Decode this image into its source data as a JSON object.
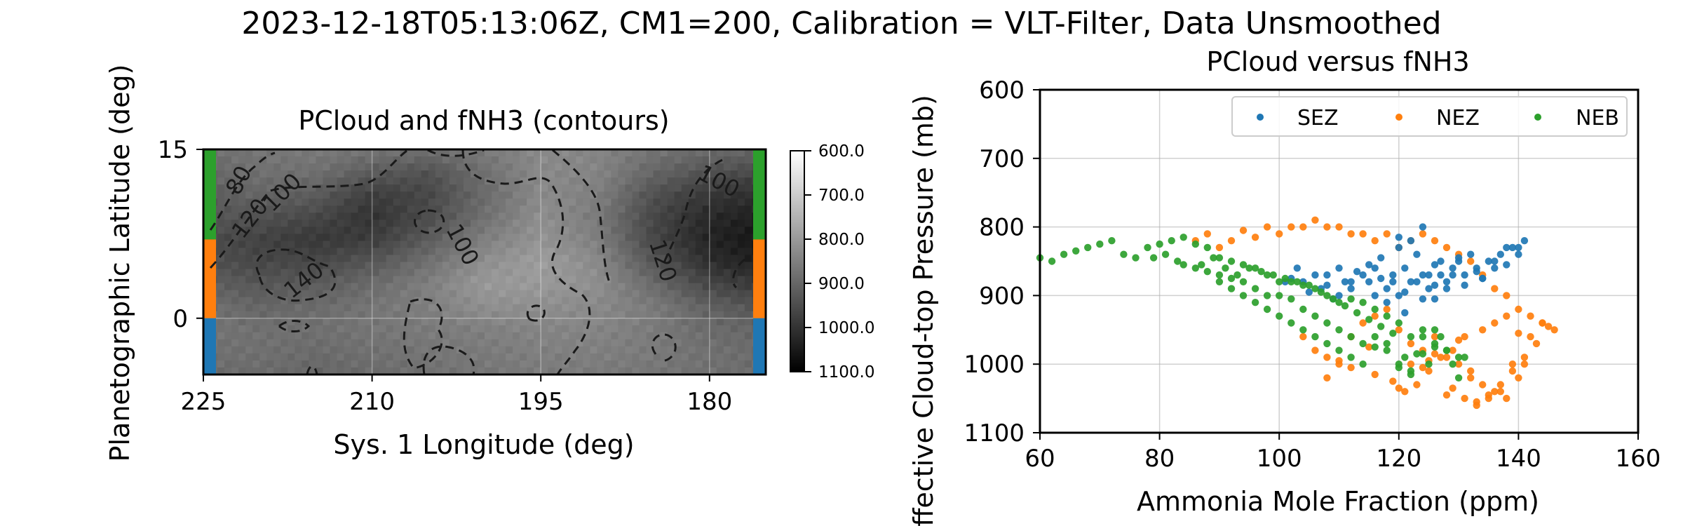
{
  "figure": {
    "suptitle": "2023-12-18T05:13:06Z, CM1=200, Calibration = VLT-Filter, Data Unsmoothed"
  },
  "chart_data": [
    {
      "type": "heatmap",
      "title": "PCloud and fNH3 (contours)",
      "xlabel": "Sys. 1 Longitude (deg)",
      "ylabel": "Planetographic Latitude (deg)",
      "xlim": [
        225,
        175
      ],
      "ylim": [
        -5,
        15
      ],
      "xticks": [
        "225",
        "210",
        "195",
        "180"
      ],
      "xtick_values": [
        225,
        210,
        195,
        180
      ],
      "yticks": [
        "15",
        "0"
      ],
      "ytick_values": [
        15,
        0
      ],
      "grid": true,
      "colormap": "gray_r",
      "colorbar": {
        "ticks": [
          "600.0",
          "700.0",
          "800.0",
          "900.0",
          "1000.0",
          "1100.0"
        ],
        "tick_values": [
          600,
          700,
          800,
          900,
          1000,
          1100
        ]
      },
      "contour_labels": [
        "80",
        "100",
        "120",
        "140",
        "100",
        "100",
        "120"
      ],
      "band_colors": [
        {
          "band": "NEB",
          "lat_range": [
            7,
            15
          ],
          "color": "#2ca02c"
        },
        {
          "band": "NEZ",
          "lat_range": [
            0,
            7
          ],
          "color": "#ff7f0e"
        },
        {
          "band": "SEZ",
          "lat_range": [
            -5,
            0
          ],
          "color": "#1f77b4"
        }
      ],
      "pressure_grid_lat_rows_top_to_bottom": [
        15,
        13,
        11,
        9,
        7,
        5,
        3,
        1,
        -1,
        -3,
        -5
      ],
      "pressure_grid_lon_cols_left_to_right": [
        225,
        220,
        215,
        210,
        205,
        200,
        195,
        190,
        185,
        180,
        175
      ],
      "pressure_grid": [
        [
          880,
          870,
          860,
          870,
          880,
          860,
          830,
          840,
          870,
          890,
          900
        ],
        [
          900,
          880,
          880,
          920,
          940,
          880,
          830,
          840,
          900,
          940,
          960
        ],
        [
          920,
          900,
          920,
          980,
          960,
          890,
          830,
          850,
          940,
          990,
          1010
        ],
        [
          930,
          940,
          960,
          1000,
          950,
          880,
          820,
          860,
          960,
          1020,
          1040
        ],
        [
          950,
          970,
          990,
          980,
          920,
          850,
          810,
          850,
          960,
          1030,
          1060
        ],
        [
          940,
          960,
          960,
          930,
          880,
          820,
          790,
          830,
          930,
          1010,
          1040
        ],
        [
          910,
          930,
          920,
          890,
          850,
          800,
          800,
          820,
          890,
          960,
          990
        ],
        [
          880,
          900,
          890,
          870,
          850,
          820,
          820,
          830,
          860,
          910,
          940
        ],
        [
          870,
          880,
          880,
          870,
          860,
          850,
          840,
          840,
          860,
          890,
          900
        ],
        [
          880,
          880,
          890,
          880,
          870,
          860,
          850,
          850,
          860,
          880,
          890
        ],
        [
          890,
          890,
          900,
          890,
          880,
          870,
          860,
          860,
          870,
          880,
          890
        ]
      ]
    },
    {
      "type": "scatter",
      "title": "PCloud versus fNH3",
      "xlabel": "Ammonia Mole Fraction (ppm)",
      "ylabel": "Effective Cloud-top Pressure (mb)",
      "xlim": [
        60,
        160
      ],
      "ylim": [
        1100,
        600
      ],
      "xticks": [
        "60",
        "80",
        "100",
        "120",
        "140",
        "160"
      ],
      "xtick_values": [
        60,
        80,
        100,
        120,
        140,
        160
      ],
      "yticks": [
        "600",
        "700",
        "800",
        "900",
        "1000",
        "1100"
      ],
      "ytick_values": [
        600,
        700,
        800,
        900,
        1000,
        1100
      ],
      "grid": true,
      "legend_position": "top-right",
      "series": [
        {
          "name": "SEZ",
          "color": "#1f77b4",
          "x": [
            102,
            104,
            106,
            108,
            110,
            112,
            114,
            115,
            116,
            117,
            118,
            119,
            120,
            120,
            121,
            122,
            123,
            124,
            125,
            126,
            127,
            128,
            129,
            130,
            131,
            132,
            133,
            134,
            135,
            136,
            137,
            138,
            139,
            140,
            141,
            120,
            122,
            124,
            118,
            116,
            126,
            128,
            121,
            119,
            123,
            125,
            110,
            112,
            105,
            108,
            127,
            130,
            133,
            136,
            138,
            140,
            113,
            117,
            129,
            131,
            134,
            115,
            111,
            109,
            107,
            103,
            101,
            121,
            124,
            126
          ],
          "y": [
            875,
            880,
            870,
            885,
            860,
            890,
            870,
            880,
            860,
            875,
            890,
            870,
            830,
            900,
            860,
            880,
            840,
            870,
            890,
            855,
            870,
            880,
            860,
            850,
            870,
            840,
            860,
            875,
            850,
            860,
            840,
            855,
            830,
            840,
            820,
            815,
            820,
            800,
            910,
            900,
            905,
            890,
            925,
            880,
            880,
            870,
            900,
            880,
            895,
            870,
            850,
            845,
            865,
            850,
            830,
            830,
            865,
            845,
            870,
            885,
            875,
            855,
            880,
            905,
            890,
            860,
            880,
            895,
            905,
            885
          ]
        },
        {
          "name": "NEZ",
          "color": "#ff7f0e",
          "x": [
            86,
            88,
            90,
            92,
            94,
            96,
            98,
            100,
            102,
            104,
            106,
            108,
            110,
            112,
            114,
            116,
            118,
            120,
            122,
            124,
            126,
            128,
            130,
            132,
            134,
            136,
            138,
            140,
            142,
            144,
            146,
            104,
            106,
            108,
            110,
            112,
            114,
            116,
            118,
            120,
            122,
            124,
            126,
            128,
            130,
            132,
            134,
            136,
            138,
            140,
            142,
            144,
            121,
            123,
            125,
            127,
            129,
            131,
            133,
            135,
            137,
            139,
            141,
            143,
            110,
            115,
            119,
            122,
            126,
            130,
            134,
            136,
            138,
            140,
            132,
            128,
            124,
            120,
            116,
            112,
            108,
            133,
            137,
            135,
            139,
            131,
            125,
            129,
            141,
            145
          ],
          "y": [
            820,
            810,
            830,
            820,
            805,
            815,
            800,
            810,
            800,
            800,
            790,
            800,
            800,
            810,
            810,
            820,
            810,
            830,
            820,
            810,
            820,
            830,
            840,
            850,
            870,
            890,
            900,
            920,
            930,
            940,
            950,
            960,
            980,
            990,
            1000,
            960,
            940,
            930,
            920,
            950,
            970,
            980,
            960,
            990,
            1000,
            1020,
            1030,
            1040,
            1050,
            1020,
            960,
            940,
            1040,
            1030,
            1010,
            990,
            980,
            960,
            1060,
            1050,
            1040,
            1000,
            990,
            970,
            995,
            975,
            1025,
            1000,
            985,
            965,
            950,
            940,
            930,
            955,
            1010,
            1045,
            1005,
            1035,
            1015,
            1005,
            1020,
            1055,
            1030,
            1045,
            1010,
            1050,
            995,
            1035,
            1000,
            945
          ]
        },
        {
          "name": "NEB",
          "color": "#2ca02c",
          "x": [
            60,
            62,
            64,
            66,
            68,
            70,
            72,
            74,
            76,
            78,
            80,
            82,
            84,
            86,
            88,
            90,
            92,
            94,
            96,
            98,
            100,
            102,
            104,
            106,
            108,
            110,
            112,
            114,
            116,
            118,
            120,
            122,
            124,
            126,
            128,
            130,
            84,
            86,
            88,
            90,
            92,
            94,
            96,
            98,
            100,
            102,
            104,
            106,
            108,
            110,
            112,
            114,
            116,
            118,
            120,
            122,
            124,
            126,
            128,
            130,
            90,
            92,
            94,
            96,
            98,
            100,
            102,
            104,
            106,
            108,
            110,
            112,
            114,
            116,
            118,
            120,
            122,
            124,
            126,
            95,
            97,
            99,
            101,
            103,
            105,
            107,
            109,
            111,
            113,
            115,
            117,
            119,
            121,
            123,
            125,
            127,
            129,
            131,
            79,
            81,
            83,
            87,
            89,
            91,
            93
          ],
          "y": [
            845,
            850,
            840,
            835,
            830,
            825,
            820,
            840,
            845,
            830,
            825,
            820,
            815,
            825,
            830,
            845,
            850,
            855,
            860,
            870,
            880,
            880,
            885,
            890,
            900,
            910,
            905,
            910,
            920,
            930,
            940,
            960,
            950,
            970,
            980,
            990,
            855,
            860,
            865,
            870,
            875,
            880,
            890,
            900,
            900,
            905,
            920,
            930,
            940,
            950,
            960,
            970,
            975,
            980,
            1000,
            1010,
            960,
            950,
            980,
            1020,
            880,
            890,
            900,
            910,
            920,
            930,
            940,
            950,
            960,
            970,
            980,
            990,
            1000,
            960,
            970,
            1005,
            1015,
            985,
            975,
            860,
            865,
            870,
            875,
            880,
            885,
            895,
            905,
            915,
            925,
            935,
            945,
            955,
            990,
            985,
            1000,
            960,
            1000,
            990,
            845,
            840,
            850,
            855,
            845,
            860,
            870
          ]
        }
      ]
    }
  ]
}
